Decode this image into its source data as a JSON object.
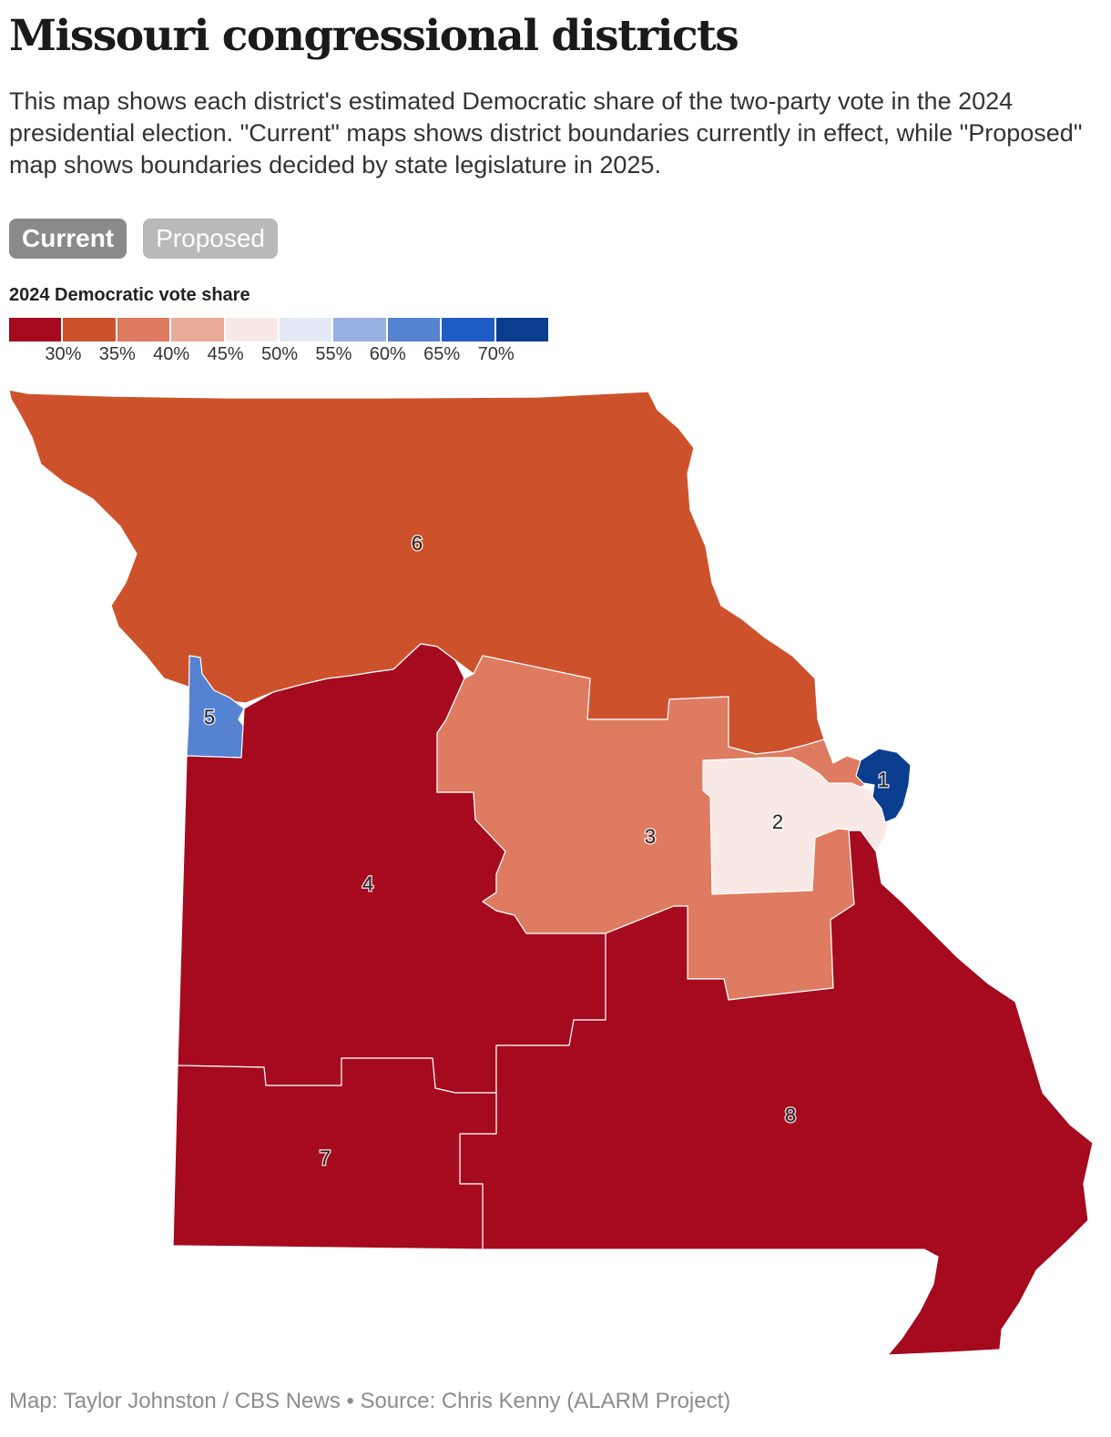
{
  "header": {
    "title": "Missouri congressional districts",
    "subtitle": "This map shows each district's estimated Democratic share of the two-party vote in the 2024 presidential election. \"Current\" maps shows district boundaries currently in effect, while \"Proposed\" map shows boundaries decided by state legislature in 2025."
  },
  "toggles": {
    "current_label": "Current",
    "proposed_label": "Proposed",
    "selected": "Current"
  },
  "legend": {
    "title": "2024 Democratic vote share",
    "colors": [
      "#a50a1e",
      "#cd522c",
      "#de7b61",
      "#eaaa98",
      "#f9e9e6",
      "#e3e9f6",
      "#95b0e1",
      "#5583d2",
      "#1f5dc6",
      "#0b3d8f"
    ],
    "ticks": [
      "30%",
      "35%",
      "40%",
      "45%",
      "50%",
      "55%",
      "60%",
      "65%",
      "70%"
    ]
  },
  "map": {
    "districts": [
      {
        "id": "1",
        "color": "#0b3d8f"
      },
      {
        "id": "2",
        "color": "#f9e9e6"
      },
      {
        "id": "3",
        "color": "#de7b61"
      },
      {
        "id": "4",
        "color": "#a50a1e"
      },
      {
        "id": "5",
        "color": "#5583d2"
      },
      {
        "id": "6",
        "color": "#cd522c"
      },
      {
        "id": "7",
        "color": "#a50a1e"
      },
      {
        "id": "8",
        "color": "#a50a1e"
      }
    ]
  },
  "footer": {
    "source": "Map: Taylor Johnston / CBS News • Source: Chris Kenny (ALARM Project)"
  }
}
